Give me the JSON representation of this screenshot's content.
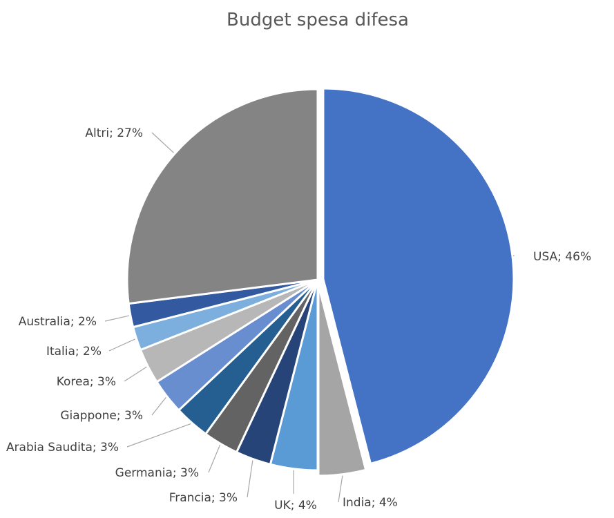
{
  "chart_data": {
    "type": "pie",
    "title": "Budget spesa difesa",
    "label_format": "name; pct",
    "slices": [
      {
        "name": "USA",
        "value": 46,
        "label": "USA; 46%",
        "color": "#4472c4",
        "exploded": true
      },
      {
        "name": "India",
        "value": 4,
        "label": "India; 4%",
        "color": "#a5a5a5",
        "exploded": true
      },
      {
        "name": "UK",
        "value": 4,
        "label": "UK; 4%",
        "color": "#5b9bd5"
      },
      {
        "name": "Francia",
        "value": 3,
        "label": "Francia; 3%",
        "color": "#264478"
      },
      {
        "name": "Germania",
        "value": 3,
        "label": "Germania; 3%",
        "color": "#636363"
      },
      {
        "name": "Arabia Saudita",
        "value": 3,
        "label": "Arabia Saudita; 3%",
        "color": "#255e91"
      },
      {
        "name": "Giappone",
        "value": 3,
        "label": "Giappone; 3%",
        "color": "#698ed0"
      },
      {
        "name": "Korea",
        "value": 3,
        "label": "Korea; 3%",
        "color": "#b7b7b7"
      },
      {
        "name": "Italia",
        "value": 2,
        "label": "Italia; 2%",
        "color": "#7cafdd"
      },
      {
        "name": "Australia",
        "value": 2,
        "label": "Australia; 2%",
        "color": "#335aa1"
      },
      {
        "name": "Altri",
        "value": 27,
        "label": "Altri; 27%",
        "color": "#848484"
      }
    ]
  }
}
